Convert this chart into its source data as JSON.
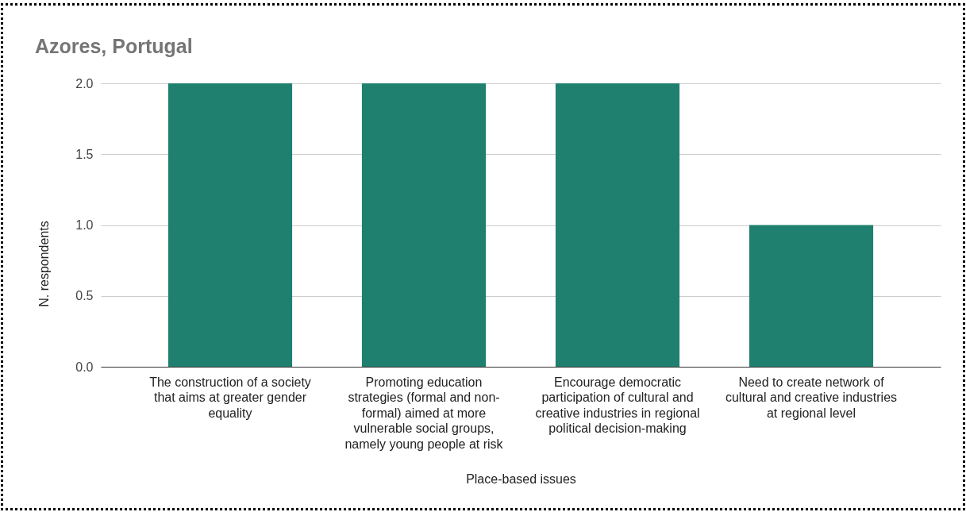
{
  "chart_data": {
    "type": "bar",
    "title": "Azores, Portugal",
    "xlabel": "Place-based issues",
    "ylabel": "N. respondents",
    "categories": [
      "The construction of a society that aims at greater gender equality",
      "Promoting education strategies (formal and non-formal) aimed at more vulnerable social groups, namely young people at risk",
      "Encourage democratic participation of cultural and creative industries in regional political decision-making",
      "Need to create network of cultural and creative industries at regional level"
    ],
    "values": [
      2,
      2,
      2,
      1
    ],
    "color": "#1f806f",
    "ylim": [
      0,
      2
    ],
    "yticks": [
      {
        "value": 0,
        "label": "0.0"
      },
      0.5,
      {
        "value": 1,
        "label": "1.0"
      },
      1.5,
      {
        "value": 2,
        "label": "2.0"
      }
    ],
    "grid": "y"
  }
}
